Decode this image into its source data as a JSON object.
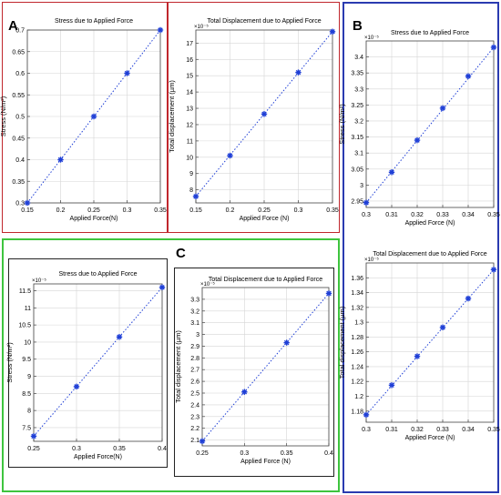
{
  "panels": {
    "A": {
      "letter": "A",
      "color": "#c0272d"
    },
    "B": {
      "letter": "B",
      "color": "#2a3bb0"
    },
    "C": {
      "letter": "C",
      "color": "#3ec43e"
    }
  },
  "chart_data": [
    {
      "id": "a-stress",
      "type": "scatter",
      "title": "Stress due to Applied Force",
      "xlabel": "Applied Force(N)",
      "ylabel": "Stress (N/m²)",
      "y_exponent": "",
      "xlim": [
        0.15,
        0.35
      ],
      "ylim": [
        0.3,
        0.7
      ],
      "xticks": [
        "0.15",
        "0.2",
        "0.25",
        "0.3",
        "0.35"
      ],
      "yticks": [
        "0.3",
        "0.35",
        "0.4",
        "0.45",
        "0.5",
        "0.55",
        "0.6",
        "0.65",
        "0.7"
      ],
      "x": [
        0.15,
        0.2,
        0.25,
        0.3,
        0.35
      ],
      "y": [
        0.3,
        0.4,
        0.5,
        0.6,
        0.7
      ],
      "marker_color": "#1f3fd6",
      "grid": true
    },
    {
      "id": "a-disp",
      "type": "scatter",
      "title": "Total Displacement due to Applied Force",
      "xlabel": "Applied Force (N)",
      "ylabel": "Total displacement (µm)",
      "y_exponent": "×10⁻⁵",
      "xlim": [
        0.15,
        0.35
      ],
      "ylim": [
        7.2,
        17.8
      ],
      "xticks": [
        "0.15",
        "0.2",
        "0.25",
        "0.3",
        "0.35"
      ],
      "yticks": [
        "8",
        "9",
        "10",
        "11",
        "12",
        "13",
        "14",
        "15",
        "16",
        "17"
      ],
      "x": [
        0.15,
        0.2,
        0.25,
        0.3,
        0.35
      ],
      "y": [
        7.6,
        10.1,
        12.65,
        15.2,
        17.7
      ],
      "marker_color": "#1f3fd6",
      "grid": true
    },
    {
      "id": "b-stress",
      "type": "scatter",
      "title": "Stress due to Applied Force",
      "xlabel": "Applied Force (N)",
      "ylabel": "Stress (N/m²)",
      "y_exponent": "×10⁻⁵",
      "xlim": [
        0.3,
        0.35
      ],
      "ylim": [
        2.93,
        3.45
      ],
      "xticks": [
        "0.3",
        "0.31",
        "0.32",
        "0.33",
        "0.34",
        "0.35"
      ],
      "yticks": [
        "2.95",
        "3",
        "3.05",
        "3.1",
        "3.15",
        "3.2",
        "3.25",
        "3.3",
        "3.35",
        "3.4"
      ],
      "x": [
        0.3,
        0.31,
        0.32,
        0.33,
        0.34,
        0.35
      ],
      "y": [
        2.945,
        3.04,
        3.14,
        3.24,
        3.34,
        3.43
      ],
      "marker_color": "#1f3fd6",
      "grid": true
    },
    {
      "id": "b-disp",
      "type": "scatter",
      "title": "Total Displacement due to Applied Force",
      "xlabel": "Applied Force (N)",
      "ylabel": "Total displacement (µm)",
      "y_exponent": "×10⁻⁵",
      "xlim": [
        0.3,
        0.35
      ],
      "ylim": [
        1.165,
        1.38
      ],
      "xticks": [
        "0.3",
        "0.31",
        "0.32",
        "0.33",
        "0.34",
        "0.35"
      ],
      "yticks": [
        "1.18",
        "1.2",
        "1.22",
        "1.24",
        "1.26",
        "1.28",
        "1.3",
        "1.32",
        "1.34",
        "1.36"
      ],
      "x": [
        0.3,
        0.31,
        0.32,
        0.33,
        0.34,
        0.35
      ],
      "y": [
        1.175,
        1.215,
        1.254,
        1.293,
        1.332,
        1.371
      ],
      "marker_color": "#1f3fd6",
      "grid": true
    },
    {
      "id": "c-stress",
      "type": "scatter",
      "title": "Stress due to Applied Force",
      "xlabel": "Applied Force(N)",
      "ylabel": "Stress (N/m²)",
      "y_exponent": "×10⁻⁵",
      "xlim": [
        0.25,
        0.4
      ],
      "ylim": [
        7.1,
        11.7
      ],
      "xticks": [
        "0.25",
        "0.3",
        "0.35",
        "0.4"
      ],
      "yticks": [
        "7.5",
        "8",
        "8.5",
        "9",
        "9.5",
        "10",
        "10.5",
        "11",
        "11.5"
      ],
      "x": [
        0.25,
        0.3,
        0.35,
        0.4
      ],
      "y": [
        7.25,
        8.7,
        10.15,
        11.6
      ],
      "marker_color": "#1f3fd6",
      "grid": true
    },
    {
      "id": "c-disp",
      "type": "scatter",
      "title": "Total Displacement due to Applied Force",
      "xlabel": "Applied Force (N)",
      "ylabel": "Total displacement (µm)",
      "y_exponent": "×10⁻⁵",
      "xlim": [
        0.25,
        0.4
      ],
      "ylim": [
        2.05,
        3.4
      ],
      "xticks": [
        "0.25",
        "0.3",
        "0.35",
        "0.4"
      ],
      "yticks": [
        "2.1",
        "2.2",
        "2.3",
        "2.4",
        "2.5",
        "2.6",
        "2.7",
        "2.8",
        "2.9",
        "3",
        "3.1",
        "3.2",
        "3.3"
      ],
      "x": [
        0.25,
        0.3,
        0.35,
        0.4
      ],
      "y": [
        2.09,
        2.51,
        2.93,
        3.35
      ],
      "marker_color": "#1f3fd6",
      "grid": true
    }
  ]
}
